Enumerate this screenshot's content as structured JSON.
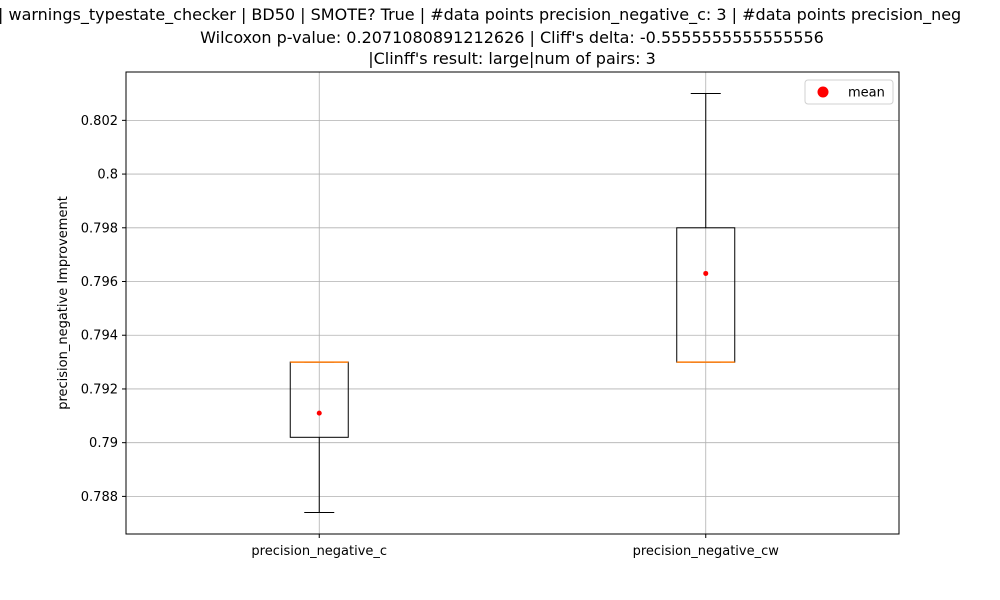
{
  "chart_data": {
    "type": "box",
    "title_lines": [
      "| warnings_typestate_checker | BD50 | SMOTE? True | #data points precision_negative_c: 3 | #data points precision_neg",
      "Wilcoxon p-value: 0.2071080891212626 | Cliff's delta: -0.5555555555555556",
      "|Clinff's result: large|num of pairs: 3"
    ],
    "ylabel": "precision_negative Improvement",
    "categories": [
      "precision_negative_c",
      "precision_negative_cw"
    ],
    "boxes": [
      {
        "whislo": 0.7874,
        "q1": 0.7902,
        "med": 0.793,
        "q3": 0.793,
        "whishi": 0.793,
        "mean": 0.7911
      },
      {
        "whislo": 0.793,
        "q1": 0.793,
        "med": 0.793,
        "q3": 0.798,
        "whishi": 0.803,
        "mean": 0.7963
      }
    ],
    "mean_label": "mean",
    "mean_color": "#ff0000",
    "median_color": "#ff7f0e",
    "box_color": "#000000",
    "ylim": [
      0.7866,
      0.8038
    ],
    "yticks": [
      0.788,
      0.79,
      0.792,
      0.794,
      0.796,
      0.798,
      0.8,
      0.802
    ],
    "grid": true,
    "legend_loc": "upper right"
  }
}
